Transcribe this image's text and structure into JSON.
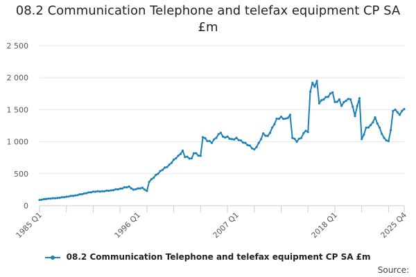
{
  "title": "08.2 Communication Telephone and telefax equipment CP SA £m",
  "source_label": "Source:",
  "colors": {
    "series": "#1a80b8",
    "grid": "#e6e6e6",
    "axis": "#cccccc",
    "text": "#555555"
  },
  "chart_data": {
    "type": "line",
    "title": "08.2 Communication Telephone and telefax equipment CP SA £m",
    "xlabel": "",
    "ylabel": "",
    "ylim": [
      0,
      2500
    ],
    "y_ticks": [
      0,
      500,
      1000,
      1500,
      2000,
      2500
    ],
    "y_tick_labels": [
      "0",
      "500",
      "1 000",
      "1 500",
      "2 000",
      "2 500"
    ],
    "x_tick_labels": [
      "1985 Q1",
      "1996 Q1",
      "2007 Q1",
      "2018 Q1",
      "2025 Q4"
    ],
    "x_tick_positions": [
      "1985 Q1",
      "1996 Q1",
      "2007 Q1",
      "2018 Q1",
      "2025 Q4"
    ],
    "grid": "horizontal",
    "legend": "bottom",
    "series": [
      {
        "name": "08.2 Communication Telephone and telefax equipment CP SA £m",
        "points": [
          [
            "1985 Q1",
            90
          ],
          [
            "1986 Q1",
            110
          ],
          [
            "1987 Q1",
            120
          ],
          [
            "1988 Q1",
            140
          ],
          [
            "1989 Q1",
            160
          ],
          [
            "1990 Q1",
            190
          ],
          [
            "1991 Q1",
            220
          ],
          [
            "1992 Q1",
            225
          ],
          [
            "1993 Q1",
            240
          ],
          [
            "1994 Q1",
            265
          ],
          [
            "1995 Q1",
            300
          ],
          [
            "1995 Q3",
            250
          ],
          [
            "1996 Q1",
            270
          ],
          [
            "1996 Q3",
            280
          ],
          [
            "1997 Q1",
            230
          ],
          [
            "1997 Q2",
            370
          ],
          [
            "1998 Q1",
            480
          ],
          [
            "1998 Q4",
            560
          ],
          [
            "1999 Q3",
            640
          ],
          [
            "2000 Q1",
            720
          ],
          [
            "2000 Q3",
            780
          ],
          [
            "2001 Q1",
            860
          ],
          [
            "2001 Q2",
            760
          ],
          [
            "2002 Q1",
            740
          ],
          [
            "2002 Q2",
            820
          ],
          [
            "2003 Q1",
            780
          ],
          [
            "2003 Q2",
            1070
          ],
          [
            "2003 Q4",
            1010
          ],
          [
            "2004 Q2",
            980
          ],
          [
            "2004 Q4",
            1060
          ],
          [
            "2005 Q2",
            1140
          ],
          [
            "2005 Q3",
            1080
          ],
          [
            "2006 Q1",
            1080
          ],
          [
            "2006 Q3",
            1040
          ],
          [
            "2007 Q1",
            1060
          ],
          [
            "2007 Q3",
            1020
          ],
          [
            "2008 Q1",
            980
          ],
          [
            "2008 Q3",
            940
          ],
          [
            "2009 Q1",
            880
          ],
          [
            "2009 Q3",
            980
          ],
          [
            "2010 Q1",
            1130
          ],
          [
            "2010 Q3",
            1090
          ],
          [
            "2011 Q1",
            1220
          ],
          [
            "2011 Q3",
            1360
          ],
          [
            "2012 Q1",
            1390
          ],
          [
            "2012 Q3",
            1360
          ],
          [
            "2013 Q1",
            1420
          ],
          [
            "2013 Q2",
            1060
          ],
          [
            "2013 Q4",
            1000
          ],
          [
            "2014 Q2",
            1060
          ],
          [
            "2014 Q4",
            1170
          ],
          [
            "2015 Q1",
            1150
          ],
          [
            "2015 Q2",
            1780
          ],
          [
            "2015 Q3",
            1920
          ],
          [
            "2015 Q4",
            1860
          ],
          [
            "2016 Q1",
            1950
          ],
          [
            "2016 Q2",
            1600
          ],
          [
            "2016 Q4",
            1660
          ],
          [
            "2017 Q2",
            1700
          ],
          [
            "2017 Q4",
            1770
          ],
          [
            "2018 Q1",
            1620
          ],
          [
            "2018 Q3",
            1660
          ],
          [
            "2018 Q4",
            1560
          ],
          [
            "2019 Q2",
            1640
          ],
          [
            "2019 Q4",
            1660
          ],
          [
            "2020 Q2",
            1400
          ],
          [
            "2020 Q4",
            1680
          ],
          [
            "2021 Q1",
            1040
          ],
          [
            "2021 Q3",
            1220
          ],
          [
            "2022 Q1",
            1260
          ],
          [
            "2022 Q3",
            1380
          ],
          [
            "2023 Q1",
            1220
          ],
          [
            "2023 Q3",
            1060
          ],
          [
            "2024 Q1",
            1010
          ],
          [
            "2024 Q2",
            1180
          ],
          [
            "2024 Q3",
            1480
          ],
          [
            "2024 Q4",
            1500
          ],
          [
            "2025 Q1",
            1460
          ],
          [
            "2025 Q2",
            1420
          ],
          [
            "2025 Q3",
            1480
          ],
          [
            "2025 Q4",
            1510
          ]
        ]
      }
    ]
  }
}
